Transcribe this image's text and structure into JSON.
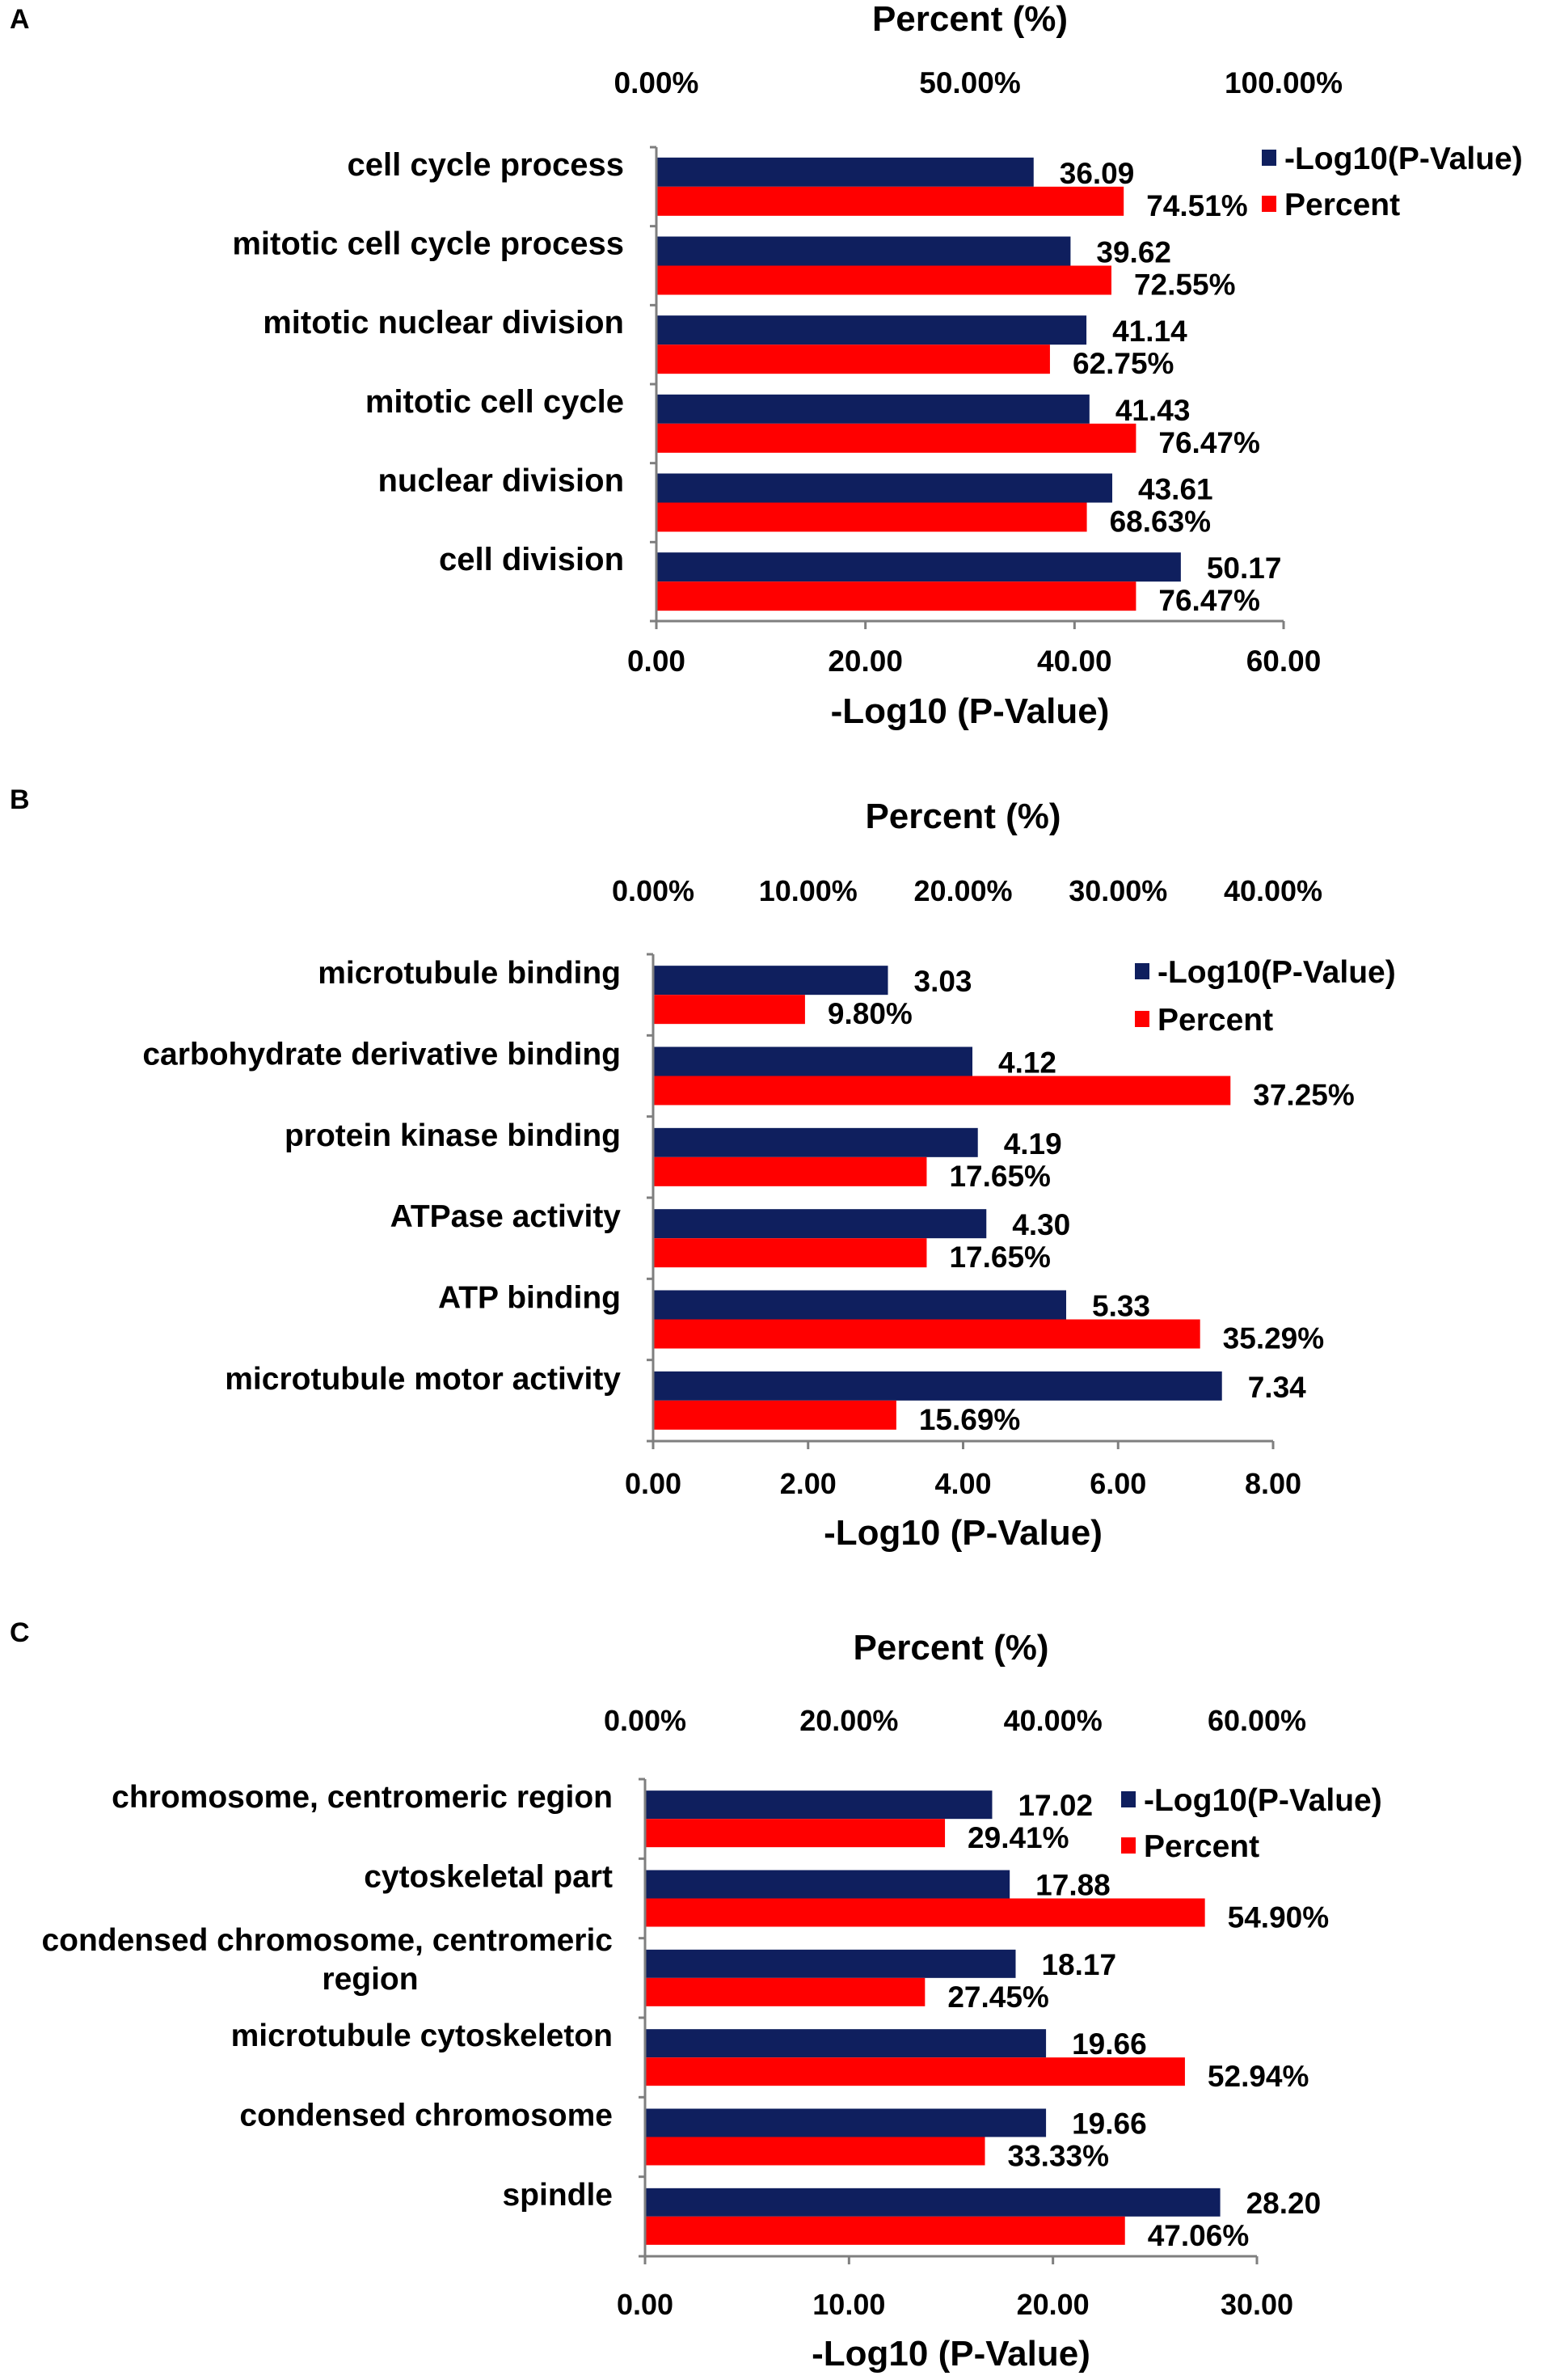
{
  "colors": {
    "pvalue": "#0F1F5E",
    "percent": "#FF0000",
    "axis": "#7F7F7F",
    "text": "#000000"
  },
  "chart_data": [
    {
      "panel": "A",
      "type": "bar",
      "orientation": "horizontal",
      "top_axis_title": "Percent (%)",
      "bottom_axis_title": "-Log10 (P-Value)",
      "categories": [
        "cell cycle process",
        "mitotic cell cycle process",
        "mitotic nuclear division",
        "mitotic cell cycle",
        "nuclear division",
        "cell division"
      ],
      "category_lines": [
        [
          "cell cycle process"
        ],
        [
          "mitotic cell cycle process"
        ],
        [
          "mitotic nuclear division"
        ],
        [
          "mitotic cell cycle"
        ],
        [
          "nuclear division"
        ],
        [
          "cell division"
        ]
      ],
      "series": [
        {
          "name": "-Log10(P-Value)",
          "axis": "bottom",
          "values": [
            36.09,
            39.62,
            41.14,
            41.43,
            43.61,
            50.17
          ],
          "labels": [
            "36.09",
            "39.62",
            "41.14",
            "41.43",
            "43.61",
            "50.17"
          ]
        },
        {
          "name": "Percent",
          "axis": "top",
          "values": [
            74.51,
            72.55,
            62.75,
            76.47,
            68.63,
            76.47
          ],
          "labels": [
            "74.51%",
            "72.55%",
            "62.75%",
            "76.47%",
            "68.63%",
            "76.47%"
          ]
        }
      ],
      "bottom_axis": {
        "min": 0,
        "max": 60,
        "ticks": [
          0,
          20,
          40,
          60
        ],
        "tick_labels": [
          "0.00",
          "20.00",
          "40.00",
          "60.00"
        ]
      },
      "top_axis": {
        "min": 0,
        "max": 100,
        "ticks": [
          0,
          50,
          100
        ],
        "tick_labels": [
          "0.00%",
          "50.00%",
          "100.00%"
        ]
      },
      "legend": [
        "-Log10(P-Value)",
        "Percent"
      ]
    },
    {
      "panel": "B",
      "type": "bar",
      "orientation": "horizontal",
      "top_axis_title": "Percent (%)",
      "bottom_axis_title": "-Log10 (P-Value)",
      "categories": [
        "microtubule binding",
        "carbohydrate derivative binding",
        "protein kinase binding",
        "ATPase activity",
        "ATP binding",
        "microtubule motor activity"
      ],
      "category_lines": [
        [
          "microtubule binding"
        ],
        [
          "carbohydrate derivative binding"
        ],
        [
          "protein kinase binding"
        ],
        [
          "ATPase activity"
        ],
        [
          "ATP binding"
        ],
        [
          "microtubule motor activity"
        ]
      ],
      "series": [
        {
          "name": "-Log10(P-Value)",
          "axis": "bottom",
          "values": [
            3.03,
            4.12,
            4.19,
            4.3,
            5.33,
            7.34
          ],
          "labels": [
            "3.03",
            "4.12",
            "4.19",
            "4.30",
            "5.33",
            "7.34"
          ]
        },
        {
          "name": "Percent",
          "axis": "top",
          "values": [
            9.8,
            37.25,
            17.65,
            17.65,
            35.29,
            15.69
          ],
          "labels": [
            "9.80%",
            "37.25%",
            "17.65%",
            "17.65%",
            "35.29%",
            "15.69%"
          ]
        }
      ],
      "bottom_axis": {
        "min": 0,
        "max": 8,
        "ticks": [
          0,
          2,
          4,
          6,
          8
        ],
        "tick_labels": [
          "0.00",
          "2.00",
          "4.00",
          "6.00",
          "8.00"
        ]
      },
      "top_axis": {
        "min": 0,
        "max": 40,
        "ticks": [
          0,
          10,
          20,
          30,
          40
        ],
        "tick_labels": [
          "0.00%",
          "10.00%",
          "20.00%",
          "30.00%",
          "40.00%"
        ]
      },
      "legend": [
        "-Log10(P-Value)",
        "Percent"
      ]
    },
    {
      "panel": "C",
      "type": "bar",
      "orientation": "horizontal",
      "top_axis_title": "Percent (%)",
      "bottom_axis_title": "-Log10 (P-Value)",
      "categories": [
        "chromosome, centromeric region",
        "cytoskeletal part",
        "condensed chromosome, centromeric region",
        "microtubule cytoskeleton",
        "condensed chromosome",
        "spindle"
      ],
      "category_lines": [
        [
          "chromosome, centromeric region"
        ],
        [
          "cytoskeletal part"
        ],
        [
          "condensed chromosome, centromeric",
          "region"
        ],
        [
          "microtubule cytoskeleton"
        ],
        [
          "condensed chromosome"
        ],
        [
          "spindle"
        ]
      ],
      "series": [
        {
          "name": "-Log10(P-Value)",
          "axis": "bottom",
          "values": [
            17.02,
            17.88,
            18.17,
            19.66,
            19.66,
            28.2
          ],
          "labels": [
            "17.02",
            "17.88",
            "18.17",
            "19.66",
            "19.66",
            "28.20"
          ]
        },
        {
          "name": "Percent",
          "axis": "top",
          "values": [
            29.41,
            54.9,
            27.45,
            52.94,
            33.33,
            47.06
          ],
          "labels": [
            "29.41%",
            "54.90%",
            "27.45%",
            "52.94%",
            "33.33%",
            "47.06%"
          ]
        }
      ],
      "bottom_axis": {
        "min": 0,
        "max": 30,
        "ticks": [
          0,
          10,
          20,
          30
        ],
        "tick_labels": [
          "0.00",
          "10.00",
          "20.00",
          "30.00"
        ]
      },
      "top_axis": {
        "min": 0,
        "max": 60,
        "ticks": [
          0,
          20,
          40,
          60
        ],
        "tick_labels": [
          "0.00%",
          "20.00%",
          "40.00%",
          "60.00%"
        ]
      },
      "legend": [
        "-Log10(P-Value)",
        "Percent"
      ]
    }
  ]
}
